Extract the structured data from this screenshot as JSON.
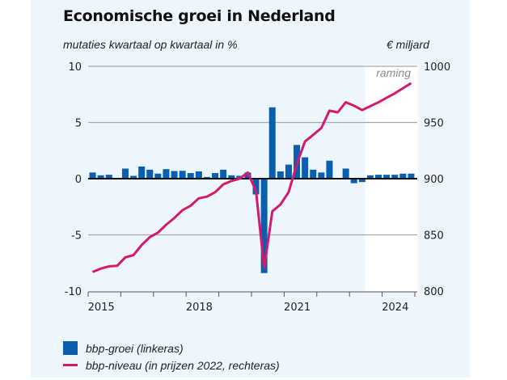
{
  "header": {
    "title": "Economische groei in Nederland",
    "left_axis_unit": "mutaties kwartaal op kwartaal in %",
    "right_axis_unit": "€ miljard"
  },
  "chart_data": {
    "type": "bar+line",
    "title": "Economische groei in Nederland",
    "xlabel": "",
    "ylabel_left": "mutaties kwartaal op kwartaal in %",
    "ylabel_right": "€ miljard",
    "x_ticks": [
      "2015",
      "2018",
      "2021",
      "2024"
    ],
    "quarters": [
      "2015Q1",
      "2015Q2",
      "2015Q3",
      "2015Q4",
      "2016Q1",
      "2016Q2",
      "2016Q3",
      "2016Q4",
      "2017Q1",
      "2017Q2",
      "2017Q3",
      "2017Q4",
      "2018Q1",
      "2018Q2",
      "2018Q3",
      "2018Q4",
      "2019Q1",
      "2019Q2",
      "2019Q3",
      "2019Q4",
      "2020Q1",
      "2020Q2",
      "2020Q3",
      "2020Q4",
      "2021Q1",
      "2021Q2",
      "2021Q3",
      "2021Q4",
      "2022Q1",
      "2022Q2",
      "2022Q3",
      "2022Q4",
      "2023Q1",
      "2023Q2",
      "2023Q3",
      "2023Q4",
      "2024Q1",
      "2024Q2",
      "2024Q3",
      "2024Q4"
    ],
    "ylim_left": [
      -10,
      10
    ],
    "yticks_left": [
      "10",
      "5",
      "0",
      "-5",
      "-10"
    ],
    "ylim_right": [
      800,
      1000
    ],
    "yticks_right": [
      "1000",
      "950",
      "900",
      "850",
      "800"
    ],
    "forecast_label": "raming",
    "forecast_start_index": 34,
    "grid": true,
    "legend_position": "bottom-left",
    "series": [
      {
        "name": "bbp-groei (linkeras)",
        "type": "bar",
        "axis": "left",
        "color": "#0a5eb0",
        "values": [
          0.55,
          0.3,
          0.35,
          0.0,
          0.9,
          0.25,
          1.08,
          0.8,
          0.45,
          0.85,
          0.68,
          0.7,
          0.5,
          0.65,
          0.15,
          0.5,
          0.8,
          0.3,
          0.25,
          0.55,
          -1.4,
          -8.4,
          6.35,
          0.65,
          1.25,
          3.0,
          1.9,
          0.8,
          0.55,
          1.6,
          -0.05,
          0.9,
          -0.4,
          -0.3,
          0.3,
          0.35,
          0.35,
          0.35,
          0.45,
          0.45
        ]
      },
      {
        "name": "bbp-niveau (in prijzen 2022, rechteras)",
        "type": "line",
        "axis": "right",
        "color": "#d4196f",
        "values": [
          817,
          820,
          822,
          822.5,
          830,
          832,
          841,
          848,
          852,
          859,
          865,
          872,
          876,
          882.5,
          884,
          888,
          895,
          898,
          900,
          905.5,
          889,
          820.5,
          871,
          877,
          888,
          913,
          933,
          939,
          945,
          960.5,
          959,
          968,
          965,
          961,
          964.5,
          968,
          972,
          976,
          980.5,
          985
        ]
      }
    ]
  },
  "legend": {
    "items": [
      {
        "label": "bbp-groei (linkeras)",
        "color": "#0a5eb0"
      },
      {
        "label": "bbp-niveau (in prijzen 2022, rechteras)",
        "color": "#d4196f"
      }
    ]
  }
}
